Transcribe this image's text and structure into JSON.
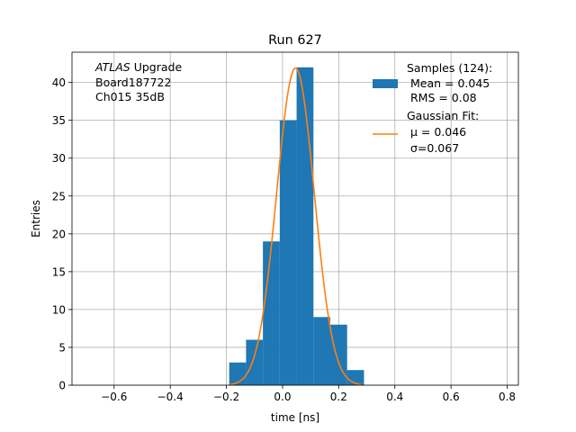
{
  "chart_data": {
    "type": "bar",
    "title": "Run 627",
    "xlabel": "time [ns]",
    "ylabel": "Entries",
    "xlim": [
      -0.75,
      0.84
    ],
    "ylim": [
      0,
      44
    ],
    "grid": true,
    "x_ticks": [
      -0.6,
      -0.4,
      -0.2,
      0.0,
      0.2,
      0.4,
      0.6,
      0.8
    ],
    "x_tick_labels": [
      "−0.6",
      "−0.4",
      "−0.2",
      "0.0",
      "0.2",
      "0.4",
      "0.6",
      "0.8"
    ],
    "y_ticks": [
      0,
      5,
      10,
      15,
      20,
      25,
      30,
      35,
      40
    ],
    "y_tick_labels": [
      "0",
      "5",
      "10",
      "15",
      "20",
      "25",
      "30",
      "35",
      "40"
    ],
    "histogram": {
      "name": "Samples (124):",
      "color": "#1f77b4",
      "bin_edges": [
        -0.19,
        -0.13,
        -0.07,
        -0.01,
        0.05,
        0.11,
        0.17,
        0.23,
        0.29
      ],
      "counts": [
        3,
        6,
        19,
        35,
        42,
        9,
        8,
        2
      ]
    },
    "fit": {
      "name": "Gaussian Fit:",
      "color": "#ff7f0e",
      "mu": 0.046,
      "sigma": 0.067,
      "amplitude": 41.9,
      "x_range": [
        -0.185,
        0.28
      ]
    },
    "legend": {
      "placement": "top-right",
      "samples_lines": [
        "Samples (124):",
        " Mean = 0.045",
        " RMS = 0.08"
      ],
      "fit_lines": [
        "Gaussian Fit:",
        " μ = 0.046",
        " σ=0.067"
      ]
    },
    "annotation": {
      "atlas": "ATLAS",
      "line1_rest": " Upgrade",
      "line2": " Board187722",
      "line3": " Ch015 35dB"
    }
  }
}
